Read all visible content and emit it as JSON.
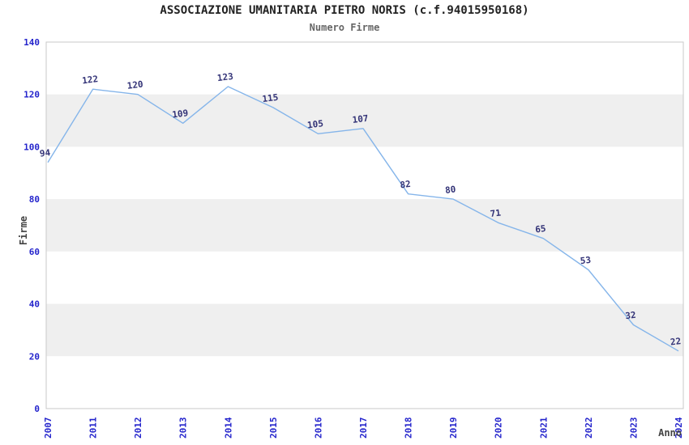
{
  "chart_data": {
    "type": "line",
    "title": "ASSOCIAZIONE UMANITARIA PIETRO NORIS (c.f.94015950168)",
    "subtitle": "Numero Firme",
    "xlabel": "Anno",
    "ylabel": "Firme",
    "categories": [
      "2007",
      "2011",
      "2012",
      "2013",
      "2014",
      "2015",
      "2016",
      "2017",
      "2018",
      "2019",
      "2020",
      "2021",
      "2022",
      "2023",
      "2024"
    ],
    "values": [
      94,
      122,
      120,
      109,
      123,
      115,
      105,
      107,
      82,
      80,
      71,
      65,
      53,
      32,
      22
    ],
    "ylim": [
      0,
      140
    ],
    "ytick_step": 20,
    "legend": "none",
    "grid": "alternating-horizontal-bands",
    "colors": {
      "line": "#85b5ea",
      "data_label": "#333377",
      "tick_label": "#2424cc",
      "band": "#efefef",
      "plot_border": "#c8c8c8",
      "title": "#222222",
      "subtitle": "#666666",
      "axis_title": "#444444",
      "background": "#ffffff"
    }
  }
}
